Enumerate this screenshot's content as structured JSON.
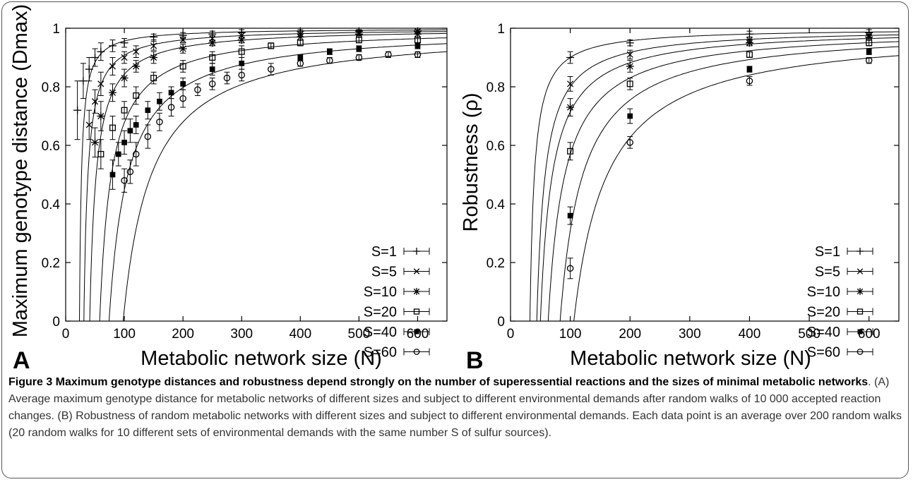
{
  "caption": {
    "title": "Figure 3 Maximum genotype distances and robustness depend strongly on the number of superessential reactions and the sizes of minimal metabolic networks",
    "text": ". (A) Average maximum genotype distance for metabolic networks of different sizes and subject to different environmental demands after random walks of 10 000 accepted reaction changes. (B) Robustness of random metabolic networks with different sizes and subject to different environmental demands. Each data point is an average over 200 random walks (20 random walks for 10 different sets of environmental demands with the same number S of sulfur sources)."
  },
  "chart_data": [
    {
      "panel": "A",
      "type": "scatter",
      "xlabel": "Metabolic network size (N)",
      "ylabel": "Maximum genotype distance (Dmax)",
      "xlim": [
        0,
        650
      ],
      "ylim": [
        0,
        1
      ],
      "xticks": [
        0,
        100,
        200,
        300,
        400,
        500,
        600
      ],
      "yticks": [
        0,
        0.2,
        0.4,
        0.6,
        0.8,
        1
      ],
      "grid": false,
      "legend_position": "bottom-right",
      "fit_curves": "D = 1 - a/(N - b)",
      "series": [
        {
          "name": "S=1",
          "marker": "plus",
          "fit_a": 3.5,
          "fit_b": 20,
          "x": [
            20,
            30,
            40,
            50,
            60,
            80,
            100,
            150,
            200,
            250,
            300,
            400,
            500,
            600
          ],
          "y": [
            0.72,
            0.82,
            0.86,
            0.9,
            0.92,
            0.94,
            0.95,
            0.97,
            0.975,
            0.98,
            0.985,
            0.99,
            0.99,
            0.99
          ],
          "err": [
            0.1,
            0.06,
            0.04,
            0.03,
            0.03,
            0.02,
            0.015,
            0.01,
            0.01,
            0.01,
            0.01,
            0.005,
            0.005,
            0.005
          ]
        },
        {
          "name": "S=5",
          "marker": "x",
          "fit_a": 7,
          "fit_b": 24,
          "x": [
            40,
            50,
            60,
            80,
            100,
            120,
            150,
            200,
            250,
            300,
            400,
            500,
            600
          ],
          "y": [
            0.67,
            0.75,
            0.81,
            0.87,
            0.9,
            0.92,
            0.94,
            0.96,
            0.965,
            0.975,
            0.98,
            0.985,
            0.99
          ],
          "err": [
            0.05,
            0.04,
            0.04,
            0.03,
            0.02,
            0.02,
            0.015,
            0.01,
            0.01,
            0.01,
            0.01,
            0.01,
            0.005
          ]
        },
        {
          "name": "S=10",
          "marker": "star",
          "fit_a": 11,
          "fit_b": 30,
          "x": [
            50,
            60,
            80,
            100,
            120,
            150,
            200,
            250,
            300,
            400,
            500,
            600
          ],
          "y": [
            0.61,
            0.7,
            0.78,
            0.83,
            0.87,
            0.9,
            0.93,
            0.95,
            0.96,
            0.97,
            0.98,
            0.98
          ],
          "err": [
            0.05,
            0.05,
            0.03,
            0.03,
            0.02,
            0.02,
            0.015,
            0.01,
            0.01,
            0.01,
            0.01,
            0.01
          ]
        },
        {
          "name": "S=20",
          "marker": "open-square",
          "fit_a": 20,
          "fit_b": 38,
          "x": [
            60,
            80,
            100,
            120,
            150,
            200,
            250,
            300,
            350,
            400,
            500,
            600
          ],
          "y": [
            0.57,
            0.66,
            0.72,
            0.77,
            0.83,
            0.87,
            0.9,
            0.92,
            0.94,
            0.95,
            0.96,
            0.96
          ],
          "err": [
            0.05,
            0.04,
            0.03,
            0.03,
            0.02,
            0.02,
            0.02,
            0.02,
            0.01,
            0.01,
            0.01,
            0.01
          ]
        },
        {
          "name": "S=40",
          "marker": "filled-square",
          "fit_a": 32,
          "fit_b": 42,
          "x": [
            80,
            90,
            100,
            110,
            120,
            140,
            160,
            180,
            200,
            250,
            300,
            400,
            450,
            500,
            600
          ],
          "y": [
            0.5,
            0.57,
            0.61,
            0.65,
            0.67,
            0.72,
            0.75,
            0.78,
            0.81,
            0.86,
            0.88,
            0.9,
            0.92,
            0.93,
            0.94
          ],
          "err": [
            0.05,
            0.04,
            0.04,
            0.04,
            0.03,
            0.03,
            0.03,
            0.02,
            0.02,
            0.02,
            0.02,
            0.01,
            0.01,
            0.01,
            0.01
          ]
        },
        {
          "name": "S=60",
          "marker": "open-circle",
          "fit_a": 48,
          "fit_b": 50,
          "x": [
            100,
            110,
            120,
            140,
            160,
            180,
            200,
            225,
            250,
            275,
            300,
            350,
            400,
            450,
            500,
            550,
            600
          ],
          "y": [
            0.48,
            0.51,
            0.57,
            0.63,
            0.68,
            0.73,
            0.76,
            0.79,
            0.81,
            0.83,
            0.84,
            0.86,
            0.88,
            0.89,
            0.9,
            0.91,
            0.91
          ],
          "err": [
            0.04,
            0.04,
            0.04,
            0.04,
            0.03,
            0.03,
            0.03,
            0.02,
            0.02,
            0.02,
            0.02,
            0.02,
            0.01,
            0.01,
            0.01,
            0.01,
            0.01
          ]
        }
      ]
    },
    {
      "panel": "B",
      "type": "scatter",
      "xlabel": "Metabolic network size (N)",
      "ylabel": "Robustness (ρ)",
      "xlim": [
        0,
        650
      ],
      "ylim": [
        0,
        1
      ],
      "xticks": [
        0,
        100,
        200,
        300,
        400,
        500,
        600
      ],
      "yticks": [
        0,
        0.2,
        0.4,
        0.6,
        0.8,
        1
      ],
      "grid": false,
      "legend_position": "bottom-right",
      "fit_curves": "ρ = 1 - a/(N - b)",
      "series": [
        {
          "name": "S=1",
          "marker": "plus",
          "fit_a": 7.5,
          "fit_b": 25,
          "x": [
            100,
            200,
            400,
            600
          ],
          "y": [
            0.9,
            0.95,
            0.98,
            0.985
          ],
          "err": [
            0.02,
            0.01,
            0.01,
            0.01
          ]
        },
        {
          "name": "S=5",
          "marker": "x",
          "fit_a": 14,
          "fit_b": 30,
          "x": [
            100,
            200,
            400,
            600
          ],
          "y": [
            0.81,
            0.91,
            0.96,
            0.975
          ],
          "err": [
            0.025,
            0.015,
            0.01,
            0.01
          ]
        },
        {
          "name": "S=10",
          "marker": "star",
          "fit_a": 20,
          "fit_b": 30,
          "x": [
            100,
            200,
            400,
            600
          ],
          "y": [
            0.73,
            0.87,
            0.95,
            0.97
          ],
          "err": [
            0.03,
            0.02,
            0.01,
            0.01
          ]
        },
        {
          "name": "S=20",
          "marker": "open-square",
          "fit_a": 28,
          "fit_b": 35,
          "x": [
            100,
            200,
            400,
            600
          ],
          "y": [
            0.58,
            0.81,
            0.91,
            0.95
          ],
          "err": [
            0.03,
            0.02,
            0.01,
            0.01
          ]
        },
        {
          "name": "S=40",
          "marker": "filled-square",
          "fit_a": 38,
          "fit_b": 45,
          "x": [
            100,
            200,
            400,
            600
          ],
          "y": [
            0.36,
            0.7,
            0.86,
            0.92
          ],
          "err": [
            0.03,
            0.025,
            0.01,
            0.01
          ]
        },
        {
          "name": "S=60",
          "marker": "open-circle",
          "fit_a": 56,
          "fit_b": 50,
          "x": [
            100,
            200,
            400,
            600
          ],
          "y": [
            0.18,
            0.61,
            0.82,
            0.89
          ],
          "err": [
            0.035,
            0.02,
            0.015,
            0.01
          ]
        }
      ]
    }
  ]
}
